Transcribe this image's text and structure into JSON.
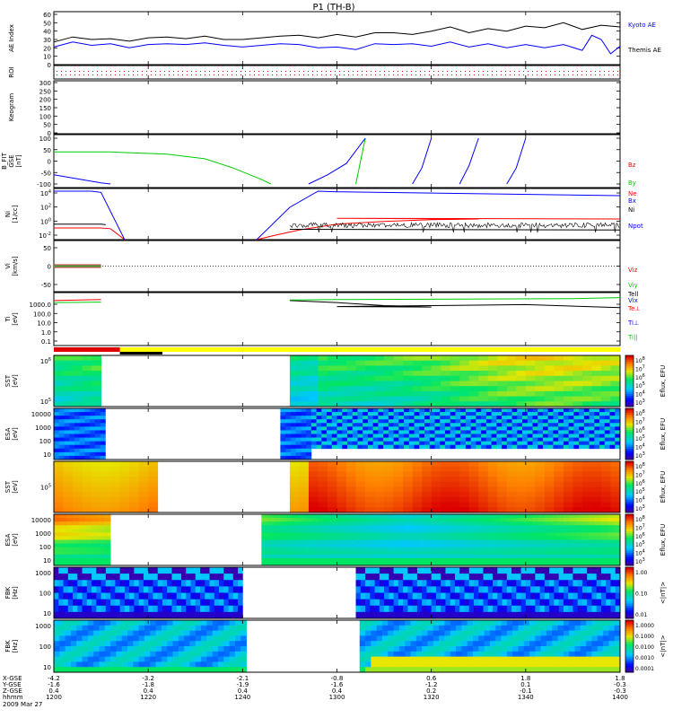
{
  "title": "P1 (TH-B)",
  "colors": {
    "kyoto": "#0000ff",
    "themis": "#000000",
    "red": "#ff0000",
    "green": "#00cc00",
    "blue": "#0000ff",
    "black": "#000000",
    "yellow": "#ffff00"
  },
  "chart_data": [
    {
      "type": "line",
      "panel": "ae",
      "ylabel": "AE Index",
      "ylim": [
        0,
        60
      ],
      "ticks": [
        "60",
        "50",
        "40",
        "30",
        "20",
        "10",
        "0"
      ],
      "series": [
        {
          "name": "Kyoto AE",
          "color": "#0000ff",
          "x": [
            1200,
            1204,
            1208,
            1212,
            1216,
            1220,
            1224,
            1228,
            1232,
            1236,
            1240,
            1244,
            1248,
            1252,
            1256,
            1300,
            1304,
            1308,
            1312,
            1316,
            1320,
            1324,
            1328,
            1332,
            1336,
            1340,
            1344,
            1348,
            1352,
            1354,
            1356,
            1358,
            1400
          ],
          "y": [
            21,
            27,
            23,
            25,
            20,
            24,
            25,
            24,
            26,
            23,
            21,
            23,
            25,
            24,
            20,
            21,
            18,
            25,
            24,
            25,
            22,
            27,
            21,
            25,
            20,
            24,
            20,
            24,
            17,
            35,
            30,
            13,
            22
          ]
        },
        {
          "name": "Themis AE",
          "color": "#000000",
          "x": [
            1200,
            1204,
            1208,
            1212,
            1216,
            1220,
            1224,
            1228,
            1232,
            1236,
            1240,
            1244,
            1248,
            1252,
            1256,
            1300,
            1304,
            1308,
            1312,
            1316,
            1320,
            1324,
            1328,
            1332,
            1336,
            1340,
            1344,
            1348,
            1352,
            1356,
            1400
          ],
          "y": [
            27,
            33,
            30,
            31,
            28,
            32,
            33,
            31,
            34,
            30,
            30,
            32,
            34,
            35,
            32,
            36,
            33,
            38,
            38,
            36,
            40,
            45,
            38,
            43,
            40,
            46,
            44,
            50,
            42,
            47,
            45
          ]
        }
      ]
    },
    {
      "type": "line",
      "panel": "roi",
      "ylabel": "ROI",
      "ticks": []
    },
    {
      "type": "line",
      "panel": "keogram",
      "ylabel": "Keogram",
      "ylim": [
        0,
        300
      ],
      "ticks": [
        "300",
        "250",
        "200",
        "150",
        "100",
        "50",
        "0"
      ]
    },
    {
      "type": "line",
      "panel": "bfit",
      "ylabel": "B_FIT GSE [nT]",
      "ylim": [
        -100,
        100
      ],
      "ticks": [
        "100",
        "50",
        "0",
        "-50",
        "-100"
      ],
      "series": [
        {
          "name": "Bz",
          "color": "#ff0000",
          "segments": []
        },
        {
          "name": "By",
          "color": "#00cc00",
          "segments": [
            [
              [
                1200,
                40
              ],
              [
                1212,
                40
              ],
              [
                1224,
                30
              ],
              [
                1232,
                10
              ],
              [
                1238,
                -30
              ],
              [
                1244,
                -80
              ],
              [
                1246,
                -100
              ]
            ],
            [
              [
                1304,
                -100
              ],
              [
                1306,
                100
              ]
            ]
          ]
        },
        {
          "name": "Bx",
          "color": "#0000ff",
          "segments": [
            [
              [
                1200,
                -60
              ],
              [
                1210,
                -95
              ],
              [
                1212,
                -100
              ]
            ],
            [
              [
                1254,
                -100
              ],
              [
                1258,
                -60
              ],
              [
                1262,
                -10
              ],
              [
                1266,
                100
              ]
            ],
            [
              [
                1316,
                -100
              ],
              [
                1318,
                -30
              ],
              [
                1320,
                100
              ]
            ],
            [
              [
                1326,
                -100
              ],
              [
                1328,
                -20
              ],
              [
                1330,
                100
              ]
            ],
            [
              [
                1336,
                -100
              ],
              [
                1338,
                -30
              ],
              [
                1340,
                100
              ]
            ]
          ]
        }
      ]
    },
    {
      "type": "line",
      "panel": "density",
      "ylabel": "Ni [1/cc]",
      "ylim": [
        -3,
        4.5
      ],
      "ticks": [
        "10^4",
        "10^2",
        "10^0",
        "10^-2"
      ],
      "series": [
        {
          "name": "Ne",
          "color": "#ff0000",
          "segments": [
            [
              [
                1200,
                -1.2
              ],
              [
                1210,
                -1.2
              ],
              [
                1212,
                -1.3
              ],
              [
                1215,
                -3
              ]
            ],
            [
              [
                1243,
                -3
              ],
              [
                1247,
                -2.3
              ],
              [
                1252,
                -1.5
              ],
              [
                1260,
                -0.6
              ],
              [
                1270,
                -0.2
              ],
              [
                1280,
                0.1
              ],
              [
                1290,
                0.2
              ],
              [
                1300,
                0.3
              ],
              [
                1400,
                0.2
              ]
            ]
          ]
        },
        {
          "name": "Ni",
          "color": "#000000",
          "segments": [
            [
              [
                1200,
                -0.6
              ],
              [
                1210,
                -0.6
              ],
              [
                1211,
                -0.7
              ]
            ],
            [
              [
                1250,
                -1.4
              ],
              [
                1400,
                -1.5
              ]
            ]
          ]
        },
        {
          "name": "Npot",
          "color": "#0000ff",
          "segments": [
            [
              [
                1200,
                4.5
              ],
              [
                1208,
                4.5
              ],
              [
                1210,
                4.3
              ],
              [
                1215,
                -3
              ]
            ],
            [
              [
                1243,
                -3
              ],
              [
                1250,
                2
              ],
              [
                1256,
                4.5
              ],
              [
                1300,
                4.4
              ],
              [
                1400,
                3.8
              ]
            ]
          ]
        }
      ]
    },
    {
      "type": "line",
      "panel": "vi",
      "ylabel": "Vi [km/s]",
      "ylim": [
        -50,
        50
      ],
      "ticks": [
        "50",
        "0",
        "-50"
      ],
      "series": [
        {
          "name": "Viz",
          "color": "#ff0000",
          "segments": [
            [
              [
                1200,
                0
              ],
              [
                1210,
                0
              ]
            ]
          ]
        },
        {
          "name": "Viy",
          "color": "#00cc00",
          "segments": [
            [
              [
                1200,
                0
              ],
              [
                1210,
                0
              ]
            ]
          ]
        },
        {
          "name": "Vix",
          "color": "#0000ff",
          "segments": []
        }
      ]
    },
    {
      "type": "line",
      "panel": "ti",
      "ylabel": "Ti [eV]",
      "ylim": [
        -1.5,
        3.8
      ],
      "ticks": [
        "1000.0",
        "100.0",
        "10.0",
        "1.0",
        "0.1"
      ],
      "series": [
        {
          "name": "Tell",
          "color": "#000000",
          "segments": [
            [
              [
                1250,
                3.0
              ],
              [
                1260,
                2.8
              ],
              [
                1270,
                2.5
              ],
              [
                1280,
                2.35
              ],
              [
                1300,
                2.4
              ],
              [
                1320,
                2.5
              ],
              [
                1340,
                2.6
              ],
              [
                1360,
                2.3
              ],
              [
                1400,
                2.1
              ]
            ]
          ]
        },
        {
          "name": "Te⊥",
          "color": "#ff0000",
          "segments": [
            [
              [
                1200,
                3.0
              ],
              [
                1210,
                3.1
              ]
            ]
          ]
        },
        {
          "name": "Ti⊥",
          "color": "#0000ff",
          "segments": []
        },
        {
          "name": "Ti||",
          "color": "#00cc00",
          "segments": [
            [
              [
                1200,
                2.8
              ],
              [
                1210,
                2.85
              ]
            ],
            [
              [
                1250,
                3.05
              ],
              [
                1300,
                3.1
              ],
              [
                1350,
                3.2
              ],
              [
                1400,
                3.3
              ]
            ]
          ]
        }
      ]
    },
    {
      "type": "heatmap",
      "panel": "sst1",
      "ylabel": "SST [eV]",
      "ticks": [
        "10^6",
        "10^5"
      ],
      "colorbar_label": "Eflux, EFU",
      "gaps": [
        [
          1210,
          1249
        ],
        [
          1400,
          1400
        ]
      ]
    },
    {
      "type": "heatmap",
      "panel": "esa1",
      "ylabel": "ESA [eV]",
      "ticks": [
        "10000",
        "1000",
        "100",
        "10"
      ],
      "colorbar_label": "Eflux, EFU",
      "gaps": [
        [
          1210,
          1248
        ]
      ]
    },
    {
      "type": "heatmap",
      "panel": "sst2",
      "ylabel": "SST [eV]",
      "ticks": [
        "10^5"
      ],
      "colorbar_label": "Eflux, EFU",
      "gaps": [
        [
          1222,
          1250
        ]
      ]
    },
    {
      "type": "heatmap",
      "panel": "esa2",
      "ylabel": "ESA [eV]",
      "ticks": [
        "10000",
        "1000",
        "100",
        "10"
      ],
      "colorbar_label": "Eflux, EFU",
      "gaps": [
        [
          1212,
          1243
        ]
      ]
    },
    {
      "type": "heatmap",
      "panel": "fbk1",
      "ylabel": "FBK [Hz]",
      "ticks": [
        "1000",
        "100",
        "10"
      ],
      "colorbar_label": "<|nT|>",
      "colorbar_ticks": [
        "1.00",
        "0.10",
        "0.01"
      ],
      "gaps": [
        [
          1240,
          1304
        ]
      ]
    },
    {
      "type": "heatmap",
      "panel": "fbk2",
      "ylabel": "FBK [Hz]",
      "ticks": [
        "1000",
        "100",
        "10"
      ],
      "colorbar_label": "<|nT|>",
      "colorbar_ticks": [
        "1.0000",
        "0.1000",
        "0.0100",
        "0.0010",
        "0.0001"
      ],
      "gaps": [
        [
          1240,
          1304
        ]
      ]
    }
  ],
  "axis_labels": {
    "legends_ae": [
      "Kyoto AE",
      "Themis AE"
    ],
    "row_labels": [
      "X-GSE",
      "Y-GSE",
      "Z-GSE",
      "hhmm",
      "2009 Mar 27"
    ],
    "columns": [
      {
        "x": "-4.2",
        "y": "-1.6",
        "z": "0.4",
        "t": "1200"
      },
      {
        "x": "-3.2",
        "y": "-1.8",
        "z": "0.4",
        "t": "1220"
      },
      {
        "x": "-2.1",
        "y": "-1.9",
        "z": "0.4",
        "t": "1240"
      },
      {
        "x": "-0.8",
        "y": "-1.6",
        "z": "0.4",
        "t": "1300"
      },
      {
        "x": "0.6",
        "y": "-1.2",
        "z": "0.2",
        "t": "1320"
      },
      {
        "x": "1.8",
        "y": "0.1",
        "z": "-0.1",
        "t": "1340"
      },
      {
        "x": "1.8",
        "y": "-0.3",
        "z": "-0.3",
        "t": "1400"
      }
    ],
    "cb_sst1": [
      "10^8",
      "10^7",
      "10^6",
      "10^5",
      "10^4",
      "10^3"
    ],
    "cb_esa1": [
      "10^8",
      "10^7",
      "10^6",
      "10^5",
      "10^4",
      "10^3"
    ],
    "cb_sst2": [
      "10^8",
      "10^7",
      "10^6",
      "10^5",
      "10^4",
      "10^3"
    ],
    "cb_esa2": [
      "10^8",
      "10^7",
      "10^6",
      "10^5",
      "10^4",
      "10^3"
    ],
    "cb_fbk1": [
      "1.00",
      "0.10",
      "0.01"
    ],
    "cb_fbk2": [
      "1.0000",
      "0.1000",
      "0.0100",
      "0.0010",
      "0.0001"
    ]
  }
}
